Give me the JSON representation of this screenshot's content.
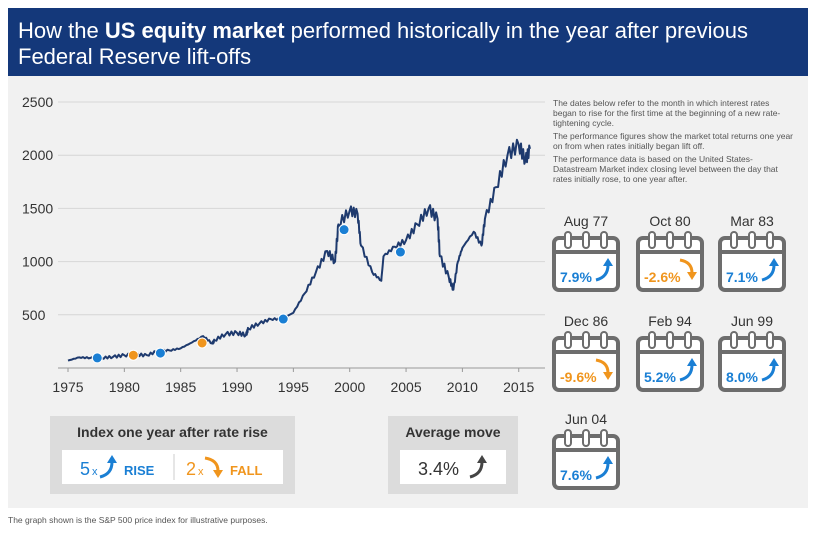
{
  "header": {
    "title_part1": "How the ",
    "title_bold": "US equity market",
    "title_part2": " performed historically in the year after previous",
    "title_line2": "Federal Reserve lift-offs"
  },
  "notes": [
    "The dates below refer to the month in which interest rates began to rise for the first time at the beginning of a new rate-tightening cycle.",
    "The performance figures show the market total returns one year on from when rates initially began lift off.",
    "The performance data is based on the United States-Datastream Market index closing level between the day that rates initially rose, to one year after."
  ],
  "colors": {
    "header": "#14387a",
    "line": "#1e3a6e",
    "rise": "#1a7fd4",
    "fall": "#f0951d",
    "calendar": "#6d6d6d"
  },
  "calendars": [
    {
      "date": "Aug 77",
      "value": "7.9%",
      "direction": "rise"
    },
    {
      "date": "Oct 80",
      "value": "-2.6%",
      "direction": "fall"
    },
    {
      "date": "Mar 83",
      "value": "7.1%",
      "direction": "rise"
    },
    {
      "date": "Dec 86",
      "value": "-9.6%",
      "direction": "fall"
    },
    {
      "date": "Feb 94",
      "value": "5.2%",
      "direction": "rise"
    },
    {
      "date": "Jun 99",
      "value": "8.0%",
      "direction": "rise"
    },
    {
      "date": "Jun 04",
      "value": "7.6%",
      "direction": "rise"
    }
  ],
  "legend": {
    "title": "Index one year after rate rise",
    "rise_count": "5",
    "rise_x": "x",
    "rise_label": "RISE",
    "fall_count": "2",
    "fall_x": "x",
    "fall_label": "FALL"
  },
  "average": {
    "title": "Average move",
    "value": "3.4%"
  },
  "footnote": "The graph shown is the S&P 500 price index for illustrative purposes.",
  "chart_data": {
    "type": "line",
    "x_ticks": [
      1975,
      1980,
      1985,
      1990,
      1995,
      2000,
      2005,
      2010,
      2015
    ],
    "y_ticks": [
      0,
      500,
      1000,
      1500,
      2000,
      2500
    ],
    "y_tick_labels": [
      "500",
      "1000",
      "1500",
      "2000",
      "2500"
    ],
    "xlim": [
      1975,
      2016
    ],
    "ylim": [
      0,
      2500
    ],
    "grid": true,
    "series": [
      {
        "x": [
          1975,
          1976,
          1977,
          1978,
          1979,
          1980,
          1981,
          1982,
          1983,
          1984,
          1985,
          1986,
          1987,
          1987.8,
          1988,
          1989,
          1990,
          1990.8,
          1991,
          1992,
          1993,
          1994,
          1995,
          1996,
          1997,
          1998,
          1998.7,
          1999,
          2000,
          2000.7,
          2001,
          2002,
          2002.8,
          2003,
          2004,
          2005,
          2006,
          2007,
          2007.8,
          2008,
          2008.8,
          2009.2,
          2009.6,
          2010,
          2011,
          2011.7,
          2012,
          2013,
          2014,
          2015,
          2015.6,
          2016
        ],
        "values": [
          70,
          100,
          95,
          95,
          105,
          120,
          125,
          120,
          160,
          165,
          185,
          240,
          300,
          230,
          260,
          320,
          330,
          310,
          370,
          420,
          460,
          460,
          520,
          700,
          900,
          1100,
          1000,
          1350,
          1480,
          1450,
          1150,
          900,
          820,
          1050,
          1140,
          1200,
          1350,
          1500,
          1400,
          1050,
          850,
          735,
          1000,
          1130,
          1280,
          1150,
          1400,
          1700,
          2000,
          2100,
          1950,
          2060
        ]
      }
    ],
    "rate_rise_markers": [
      {
        "date": 1977.6,
        "value": 95,
        "direction": "rise"
      },
      {
        "date": 1980.8,
        "value": 120,
        "direction": "fall"
      },
      {
        "date": 1983.2,
        "value": 140,
        "direction": "rise"
      },
      {
        "date": 1986.9,
        "value": 235,
        "direction": "fall"
      },
      {
        "date": 1994.1,
        "value": 460,
        "direction": "rise"
      },
      {
        "date": 1999.5,
        "value": 1300,
        "direction": "rise"
      },
      {
        "date": 2004.5,
        "value": 1090,
        "direction": "rise"
      }
    ]
  }
}
